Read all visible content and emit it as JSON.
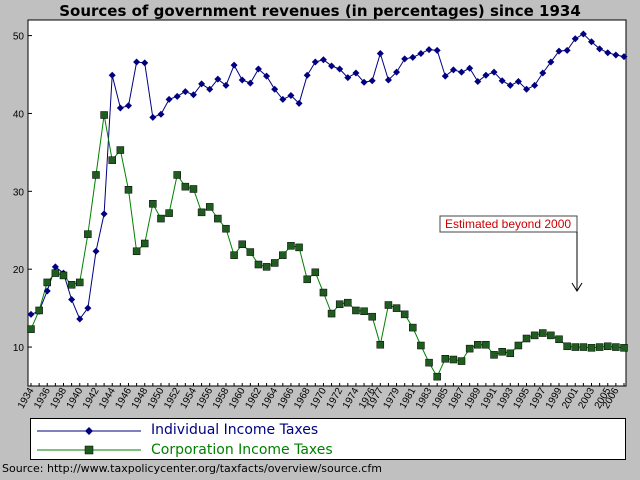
{
  "title": "Sources of government revenues (in percentages) since 1934",
  "annotation": "Estimated beyond 2000",
  "source": "Source: http://www.taxpolicycenter.org/taxfacts/overview/source.cfm",
  "colors": {
    "individual": "#000080",
    "corporation": "#008000",
    "annotation": "#cc0000"
  },
  "chart_data": {
    "type": "line",
    "title": "Sources of government revenues (in percentages) since 1934",
    "xlabel": "",
    "ylabel": "",
    "x_start": 1934,
    "x_end": 2006,
    "ylim": [
      5,
      52
    ],
    "yticks": [
      10,
      20,
      30,
      40,
      50
    ],
    "xtick_labels": [
      "1934",
      "1936",
      "1938",
      "1940",
      "1942",
      "1944",
      "1946",
      "1948",
      "1950",
      "1952",
      "1954",
      "1956",
      "1958",
      "1960",
      "1962",
      "1964",
      "1966",
      "1968",
      "1970",
      "1972",
      "1974",
      "1976",
      "1977",
      "1979",
      "1981",
      "1983",
      "1985",
      "1987",
      "1989",
      "1991",
      "1993",
      "1995",
      "1997",
      "1999",
      "2001",
      "2003",
      "2005",
      "2006"
    ],
    "grid": false,
    "legend": "bottom",
    "series": [
      {
        "name": "Individual Income Taxes",
        "marker": "diamond",
        "values": [
          14.2,
          14.6,
          17.2,
          20.3,
          19.5,
          16.1,
          13.6,
          15.0,
          22.3,
          27.1,
          44.9,
          40.7,
          41.0,
          46.6,
          46.5,
          39.5,
          39.9,
          41.8,
          42.2,
          42.8,
          42.4,
          43.8,
          43.1,
          44.4,
          43.6,
          46.2,
          44.3,
          43.9,
          45.7,
          44.8,
          43.1,
          41.8,
          42.3,
          41.3,
          44.9,
          46.6,
          46.9,
          46.1,
          45.7,
          44.6,
          45.2,
          44.0,
          44.2,
          47.7,
          44.3,
          45.3,
          47.0,
          47.2,
          47.7,
          48.2,
          48.1,
          44.8,
          45.6,
          45.3,
          45.8,
          44.1,
          44.9,
          45.3,
          44.2,
          43.6,
          44.1,
          43.1,
          43.6,
          45.2,
          46.6,
          48.0,
          48.1,
          49.6,
          50.2,
          49.2,
          48.3,
          47.8,
          47.5,
          47.3
        ]
      },
      {
        "name": "Corporation Income Taxes",
        "marker": "square",
        "values": [
          12.3,
          14.7,
          18.3,
          19.5,
          19.2,
          18.0,
          18.3,
          24.5,
          32.1,
          39.8,
          34.0,
          35.3,
          30.2,
          22.3,
          23.3,
          28.4,
          26.5,
          27.2,
          32.1,
          30.6,
          30.3,
          27.3,
          28.0,
          26.5,
          25.2,
          21.8,
          23.2,
          22.2,
          20.6,
          20.3,
          20.8,
          21.8,
          23.0,
          22.8,
          18.7,
          19.6,
          17.0,
          14.3,
          15.5,
          15.7,
          14.7,
          14.6,
          13.9,
          10.3,
          15.4,
          15.0,
          14.2,
          12.5,
          10.2,
          8.0,
          6.2,
          8.5,
          8.4,
          8.2,
          9.8,
          10.3,
          10.3,
          9.0,
          9.4,
          9.2,
          10.2,
          11.1,
          11.5,
          11.8,
          11.5,
          11.0,
          10.1,
          10.0,
          10.0,
          9.9,
          10.0,
          10.1,
          10.0,
          9.9
        ]
      }
    ]
  }
}
